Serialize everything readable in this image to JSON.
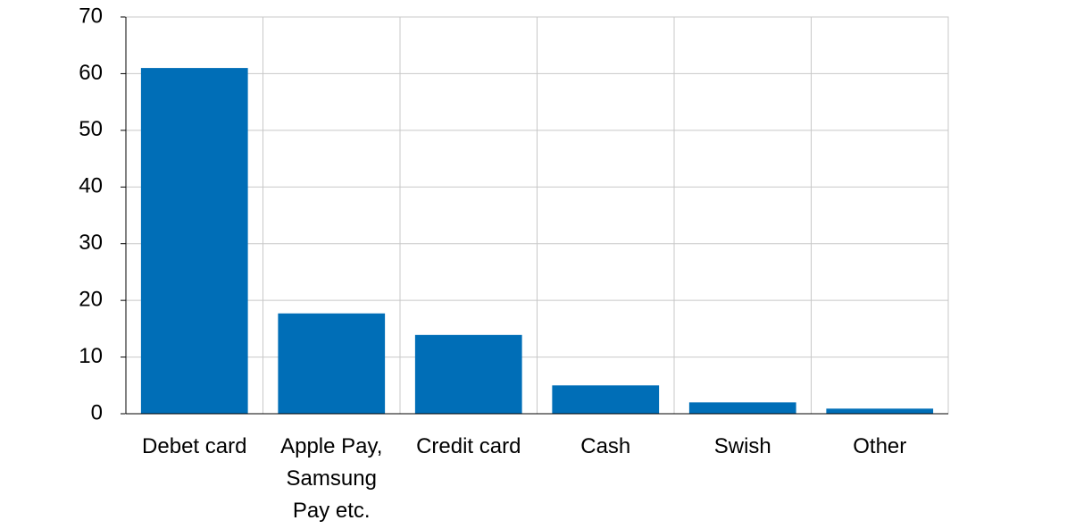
{
  "chart_data": {
    "type": "bar",
    "categories": [
      "Debet card",
      "Apple Pay, Samsung Pay etc.",
      "Credit card",
      "Cash",
      "Swish",
      "Other"
    ],
    "values": [
      61,
      17.7,
      13.9,
      5,
      2,
      0.9
    ],
    "color": "#006eb7",
    "ylim": [
      0,
      70
    ],
    "yticks": [
      0,
      10,
      20,
      30,
      40,
      50,
      60,
      70
    ],
    "grid": true
  }
}
